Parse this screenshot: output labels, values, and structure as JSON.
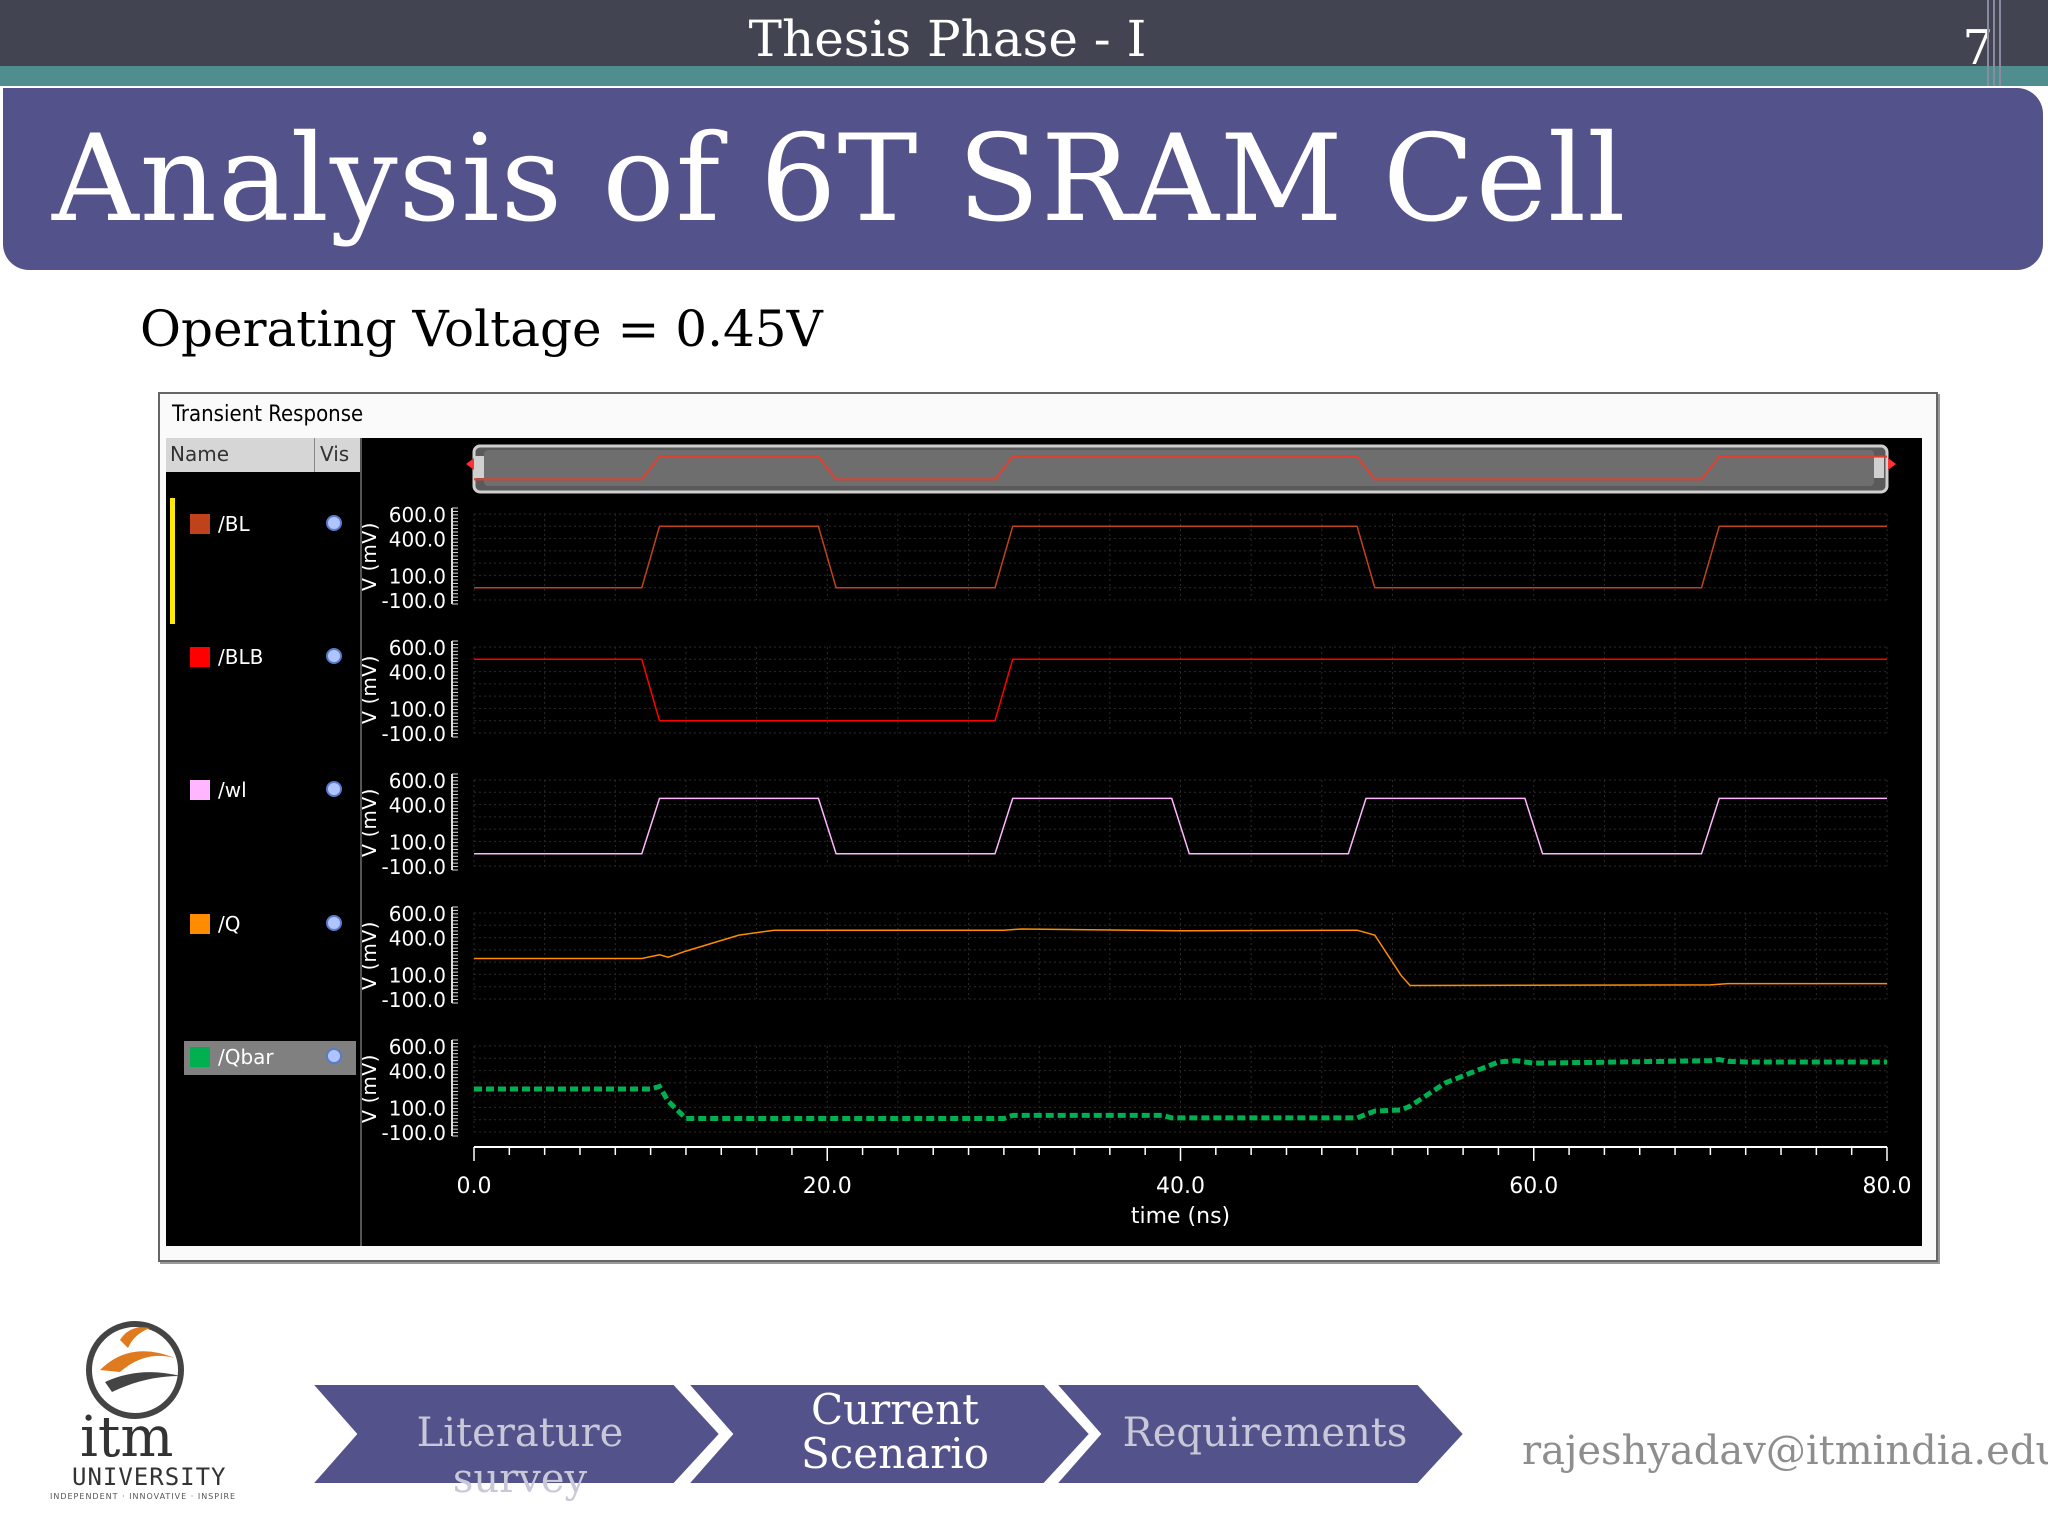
{
  "header": {
    "title": "Thesis Phase - I",
    "page_number": "7"
  },
  "slide": {
    "title": "Analysis of 6T SRAM Cell",
    "subtitle": "Operating Voltage = 0.45V"
  },
  "simulator": {
    "panel_title": "Transient Response",
    "columns": {
      "name": "Name",
      "vis": "Vis"
    },
    "signals": [
      {
        "name": "/BL",
        "color": "#c0421c",
        "selected": false
      },
      {
        "name": "/BLB",
        "color": "#ff0000",
        "selected": false
      },
      {
        "name": "/wl",
        "color": "#ffb6ff",
        "selected": false
      },
      {
        "name": "/Q",
        "color": "#ff8c00",
        "selected": false
      },
      {
        "name": "/Qbar",
        "color": "#00b050",
        "selected": true
      }
    ]
  },
  "chart_data": {
    "type": "line",
    "title": "Transient Response",
    "xlabel": "time (ns)",
    "xlim": [
      0,
      80
    ],
    "x_ticks": [
      "0.0",
      "20.0",
      "40.0",
      "60.0",
      "80.0"
    ],
    "ylabel": "V (mV)",
    "ylim": [
      -100,
      600
    ],
    "y_ticks": [
      "600.0",
      "400.0",
      "100.0",
      "-100.0"
    ],
    "grid": true,
    "series": [
      {
        "name": "/BL",
        "color": "#c0421c",
        "dash": false,
        "x": [
          0,
          9.5,
          10.5,
          19.5,
          20.5,
          29.5,
          30.5,
          50,
          51,
          69.5,
          70.5,
          80
        ],
        "y": [
          0,
          0,
          500,
          500,
          0,
          0,
          500,
          500,
          0,
          0,
          500,
          500
        ]
      },
      {
        "name": "/BLB",
        "color": "#ff0000",
        "dash": false,
        "x": [
          0,
          9.5,
          10.5,
          29.5,
          30.5,
          80
        ],
        "y": [
          500,
          500,
          0,
          0,
          500,
          500
        ]
      },
      {
        "name": "/wl",
        "color": "#ffb6ff",
        "dash": false,
        "x": [
          0,
          9.5,
          10.5,
          19.5,
          20.5,
          29.5,
          30.5,
          39.5,
          40.5,
          49.5,
          50.5,
          59.5,
          60.5,
          69.5,
          70.5,
          80
        ],
        "y": [
          0,
          0,
          450,
          450,
          0,
          0,
          450,
          450,
          0,
          0,
          450,
          450,
          0,
          0,
          450,
          450
        ]
      },
      {
        "name": "/Q",
        "color": "#ff8c00",
        "dash": false,
        "x": [
          0,
          9.5,
          10.5,
          11,
          12,
          15,
          17,
          30,
          31,
          40,
          50,
          51,
          52.5,
          53,
          70,
          71,
          80
        ],
        "y": [
          230,
          230,
          260,
          240,
          290,
          420,
          460,
          460,
          470,
          455,
          460,
          420,
          90,
          10,
          15,
          25,
          25
        ]
      },
      {
        "name": "/Qbar",
        "color": "#00b050",
        "dash": true,
        "x": [
          0,
          10,
          10.5,
          11,
          12,
          30,
          30.5,
          39,
          39.5,
          50,
          51,
          52.5,
          53,
          55,
          58,
          59,
          60,
          70,
          70.5,
          71,
          72,
          80
        ],
        "y": [
          250,
          250,
          270,
          150,
          10,
          10,
          35,
          35,
          15,
          15,
          70,
          80,
          110,
          300,
          470,
          480,
          460,
          480,
          490,
          475,
          470,
          470
        ]
      }
    ]
  },
  "footer": {
    "logo": {
      "name": "itm",
      "sub": "UNIVERSITY",
      "tag": "INDEPENDENT · INNOVATIVE · INSPIRE"
    },
    "nav": [
      {
        "label": "Literature survey",
        "active": false
      },
      {
        "label": "Current Scenario",
        "line1": "Current",
        "line2": "Scenario",
        "active": true
      },
      {
        "label": "Requirements",
        "active": false
      }
    ],
    "email": "rajeshyadav@itmindia.edu"
  },
  "colors": {
    "title_bar": "#54528a",
    "top_bar": "#434452",
    "accent_teal": "#4f8d8e",
    "nav_fill": "#54528a"
  }
}
